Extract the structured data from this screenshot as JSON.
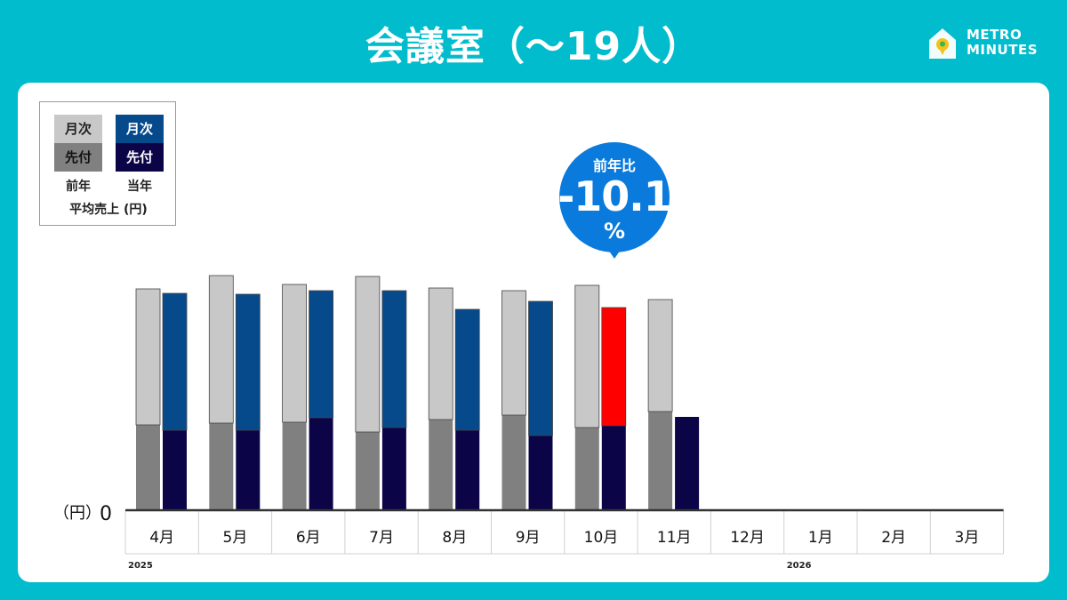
{
  "title": "会議室（〜19人）",
  "logo": {
    "line1": "METRO",
    "line2": "MINUTES",
    "icon": "house-pin-icon"
  },
  "legend": {
    "monthly": "月次",
    "advance": "先付",
    "prev_year": "前年",
    "cur_year": "当年",
    "caption": "平均売上 (円)",
    "colors": {
      "prev_monthly": "#c8c8c8",
      "prev_advance": "#808080",
      "cur_monthly": "#064a8c",
      "cur_advance": "#0b0548",
      "highlight": "#ff0000"
    }
  },
  "callout": {
    "label": "前年比",
    "value": "-10.1",
    "unit": "%",
    "color": "#0a7bdc"
  },
  "chart_data": {
    "type": "bar",
    "stacked": true,
    "categories": [
      "4月",
      "5月",
      "6月",
      "7月",
      "8月",
      "9月",
      "10月",
      "11月",
      "12月",
      "1月",
      "2月",
      "3月"
    ],
    "year_labels": [
      {
        "category_index": 0,
        "label": "2025"
      },
      {
        "category_index": 9,
        "label": "2026"
      }
    ],
    "yunit": "（円）",
    "y_zero_label": "0",
    "ylim": [
      0,
      270
    ],
    "grid": false,
    "legend_position": "top-left",
    "highlight": {
      "series": "当年",
      "category_index": 6
    },
    "series": [
      {
        "name": "前年",
        "stack": [
          {
            "name": "先付",
            "values": [
              96,
              98,
              99,
              88,
              102,
              107,
              93,
              111,
              null,
              null,
              null,
              null
            ]
          },
          {
            "name": "月次",
            "values": [
              153,
              166,
              155,
              175,
              148,
              140,
              160,
              126,
              null,
              null,
              null,
              null
            ]
          }
        ]
      },
      {
        "name": "当年",
        "stack": [
          {
            "name": "先付",
            "values": [
              90,
              90,
              104,
              93,
              90,
              84,
              95,
              105,
              null,
              null,
              null,
              null
            ]
          },
          {
            "name": "月次",
            "values": [
              154,
              153,
              143,
              154,
              136,
              151,
              133,
              null,
              null,
              null,
              null,
              null
            ]
          }
        ]
      }
    ]
  }
}
